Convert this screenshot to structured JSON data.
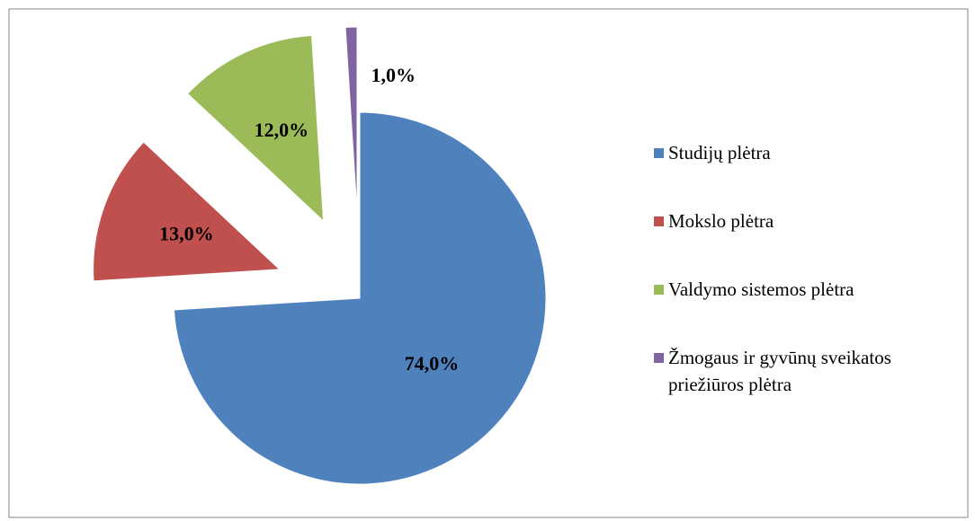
{
  "chart_data": {
    "type": "pie",
    "categories": [
      "Studijų plėtra",
      "Mokslo plėtra",
      "Valdymo sistemos plėtra",
      "Žmogaus ir gyvūnų sveikatos priežiūros plėtra"
    ],
    "values": [
      74,
      13,
      12,
      1
    ],
    "value_labels": [
      "74,0%",
      "13,0%",
      "12,0%",
      "1,0%"
    ],
    "colors": [
      "#4f81bd",
      "#c0504d",
      "#9bbb59",
      "#8064a2"
    ],
    "legend": "right"
  }
}
